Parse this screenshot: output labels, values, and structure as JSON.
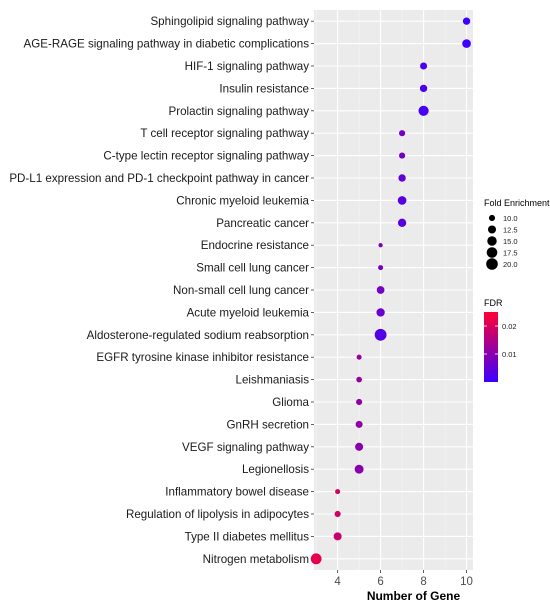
{
  "chart_data": {
    "type": "scatter",
    "xlabel": "Number of Gene",
    "ylabel": "",
    "xlim": [
      2.9,
      10.3
    ],
    "x_ticks": [
      4,
      6,
      8,
      10
    ],
    "grid": true,
    "legend_position": "right",
    "size_legend": {
      "title": "Fold Enrichment",
      "values": [
        10.0,
        12.5,
        15.0,
        17.5,
        20.0
      ],
      "labels": [
        "10.0",
        "12.5",
        "15.0",
        "17.5",
        "20.0"
      ]
    },
    "color_legend": {
      "title": "FDR",
      "range": [
        0.0,
        0.025
      ],
      "ticks": [
        0.01,
        0.02
      ],
      "tick_labels": [
        "0.01",
        "0.02"
      ],
      "low_color": "#3b00ff",
      "high_color": "#ff0033"
    },
    "categories": [
      "Sphingolipid signaling pathway",
      "AGE-RAGE signaling pathway in diabetic complications",
      "HIF-1 signaling pathway",
      "Insulin resistance",
      "Prolactin signaling pathway",
      "T cell receptor signaling pathway",
      "C-type lectin receptor signaling pathway",
      "PD-L1 expression and PD-1 checkpoint pathway in cancer",
      "Chronic myeloid leukemia",
      "Pancreatic cancer",
      "Endocrine resistance",
      "Small cell lung cancer",
      "Non-small cell lung cancer",
      "Acute myeloid leukemia",
      "Aldosterone-regulated sodium reabsorption",
      "EGFR tyrosine kinase inhibitor resistance",
      "Leishmaniasis",
      "Glioma",
      "GnRH secretion",
      "VEGF signaling pathway",
      "Legionellosis",
      "Inflammatory bowel disease",
      "Regulation of lipolysis in adipocytes",
      "Type II diabetes mellitus",
      "Nitrogen metabolism"
    ],
    "points": [
      {
        "pathway": "Sphingolipid signaling pathway",
        "genes": 10,
        "fold_enrichment": 11.5,
        "fdr": 0.0005
      },
      {
        "pathway": "AGE-RAGE signaling pathway in diabetic complications",
        "genes": 10,
        "fold_enrichment": 13.5,
        "fdr": 0.0004
      },
      {
        "pathway": "HIF-1 signaling pathway",
        "genes": 8,
        "fold_enrichment": 11.0,
        "fdr": 0.002
      },
      {
        "pathway": "Insulin resistance",
        "genes": 8,
        "fold_enrichment": 11.5,
        "fdr": 0.002
      },
      {
        "pathway": "Prolactin signaling pathway",
        "genes": 8,
        "fold_enrichment": 16.5,
        "fdr": 0.0015
      },
      {
        "pathway": "T cell receptor signaling pathway",
        "genes": 7,
        "fold_enrichment": 10.0,
        "fdr": 0.007
      },
      {
        "pathway": "C-type lectin receptor signaling pathway",
        "genes": 7,
        "fold_enrichment": 10.0,
        "fdr": 0.007
      },
      {
        "pathway": "PD-L1 expression and PD-1 checkpoint pathway in cancer",
        "genes": 7,
        "fold_enrichment": 11.5,
        "fdr": 0.005
      },
      {
        "pathway": "Chronic myeloid leukemia",
        "genes": 7,
        "fold_enrichment": 13.5,
        "fdr": 0.004
      },
      {
        "pathway": "Pancreatic cancer",
        "genes": 7,
        "fold_enrichment": 13.0,
        "fdr": 0.004
      },
      {
        "pathway": "Endocrine resistance",
        "genes": 6,
        "fold_enrichment": 8.5,
        "fdr": 0.009
      },
      {
        "pathway": "Small cell lung cancer",
        "genes": 6,
        "fold_enrichment": 9.0,
        "fdr": 0.008
      },
      {
        "pathway": "Non-small cell lung cancer",
        "genes": 6,
        "fold_enrichment": 12.0,
        "fdr": 0.007
      },
      {
        "pathway": "Acute myeloid leukemia",
        "genes": 6,
        "fold_enrichment": 13.0,
        "fdr": 0.006
      },
      {
        "pathway": "Aldosterone-regulated sodium reabsorption",
        "genes": 6,
        "fold_enrichment": 20.5,
        "fdr": 0.003
      },
      {
        "pathway": "EGFR tyrosine kinase inhibitor resistance",
        "genes": 5,
        "fold_enrichment": 9.0,
        "fdr": 0.012
      },
      {
        "pathway": "Leishmaniasis",
        "genes": 5,
        "fold_enrichment": 9.5,
        "fdr": 0.012
      },
      {
        "pathway": "Glioma",
        "genes": 5,
        "fold_enrichment": 10.0,
        "fdr": 0.011
      },
      {
        "pathway": "GnRH secretion",
        "genes": 5,
        "fold_enrichment": 11.0,
        "fdr": 0.011
      },
      {
        "pathway": "VEGF signaling pathway",
        "genes": 5,
        "fold_enrichment": 12.5,
        "fdr": 0.01
      },
      {
        "pathway": "Legionellosis",
        "genes": 5,
        "fold_enrichment": 14.0,
        "fdr": 0.01
      },
      {
        "pathway": "Inflammatory bowel disease",
        "genes": 4,
        "fold_enrichment": 9.0,
        "fdr": 0.019
      },
      {
        "pathway": "Regulation of lipolysis in adipocytes",
        "genes": 4,
        "fold_enrichment": 10.0,
        "fdr": 0.019
      },
      {
        "pathway": "Type II diabetes mellitus",
        "genes": 4,
        "fold_enrichment": 12.5,
        "fdr": 0.018
      },
      {
        "pathway": "Nitrogen metabolism",
        "genes": 3,
        "fold_enrichment": 18.0,
        "fdr": 0.022
      }
    ],
    "size_range": [
      8.0,
      21.0
    ]
  }
}
